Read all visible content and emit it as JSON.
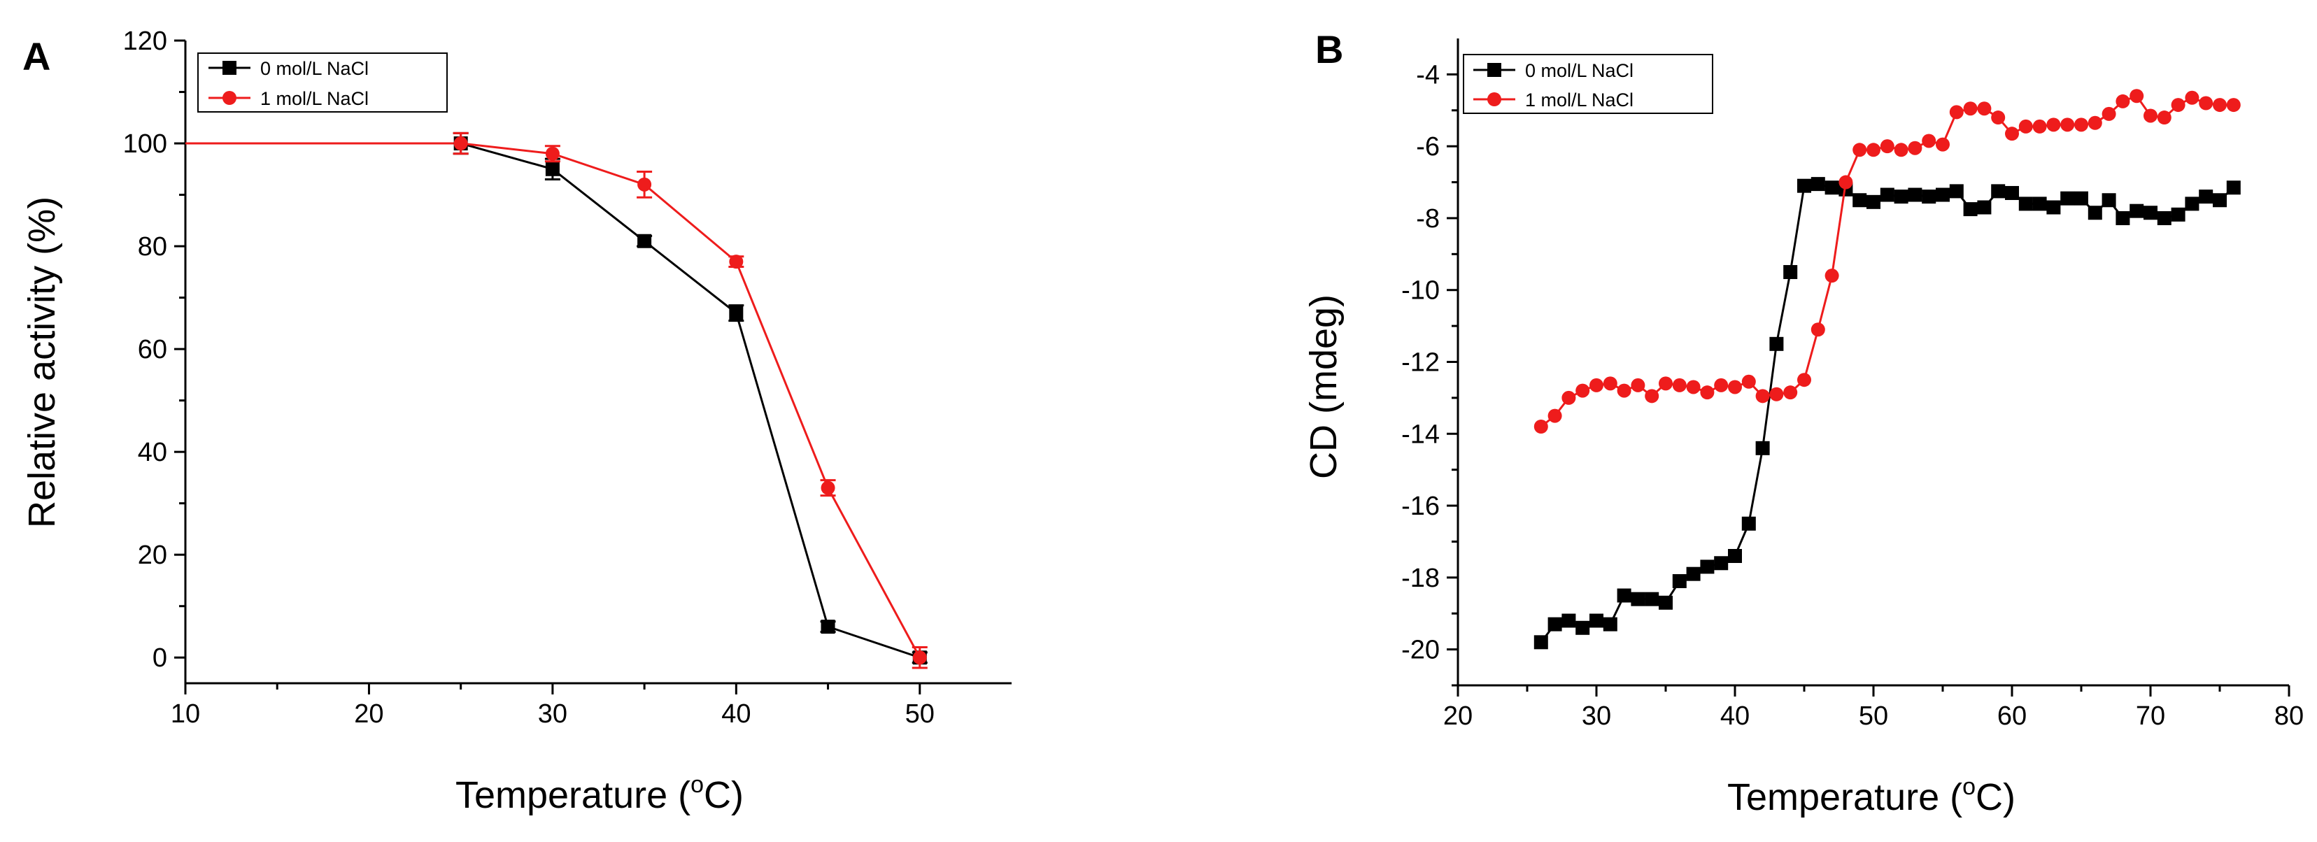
{
  "colors": {
    "series_black": "#000000",
    "series_red": "#ee1c1c"
  },
  "chart_data": [
    {
      "panel": "A",
      "type": "line",
      "title": "",
      "xlabel": "Temperature (°C)",
      "xlabel_main": "Temperature (",
      "xlabel_sup": "o",
      "xlabel_end": "C)",
      "ylabel": "Relative activity (%)",
      "xlim": [
        10,
        55
      ],
      "ylim": [
        -5,
        120
      ],
      "xticks": [
        10,
        20,
        30,
        40,
        50
      ],
      "yticks": [
        0,
        20,
        40,
        60,
        80,
        100,
        120
      ],
      "legend_position": "top-left",
      "grid": false,
      "series": [
        {
          "name": "0 mol/L NaCl",
          "color": "#000000",
          "marker": "square",
          "x": [
            25,
            30,
            35,
            40,
            45,
            50
          ],
          "y": [
            100,
            95,
            81,
            67,
            6,
            0
          ],
          "err": [
            2,
            2,
            1,
            1.5,
            1,
            1
          ]
        },
        {
          "name": "1 mol/L NaCl",
          "color": "#ee1c1c",
          "marker": "circle",
          "x": [
            25,
            30,
            35,
            40,
            45,
            50
          ],
          "y": [
            100,
            98,
            92,
            77,
            33,
            0
          ],
          "err": [
            2,
            1.5,
            2.5,
            1,
            1.5,
            2
          ]
        }
      ],
      "baseline": {
        "color": "#ee1c1c",
        "x": [
          10,
          25
        ],
        "y": [
          100,
          100
        ]
      }
    },
    {
      "panel": "B",
      "type": "line",
      "title": "",
      "xlabel": "Temperature (°C)",
      "xlabel_main": "Temperature (",
      "xlabel_sup": "o",
      "xlabel_end": "C)",
      "ylabel": "CD (mdeg)",
      "xlim": [
        20,
        80
      ],
      "ylim": [
        -21,
        -3
      ],
      "xticks": [
        20,
        30,
        40,
        50,
        60,
        70,
        80
      ],
      "yticks": [
        -20,
        -18,
        -16,
        -14,
        -12,
        -10,
        -8,
        -6,
        -4
      ],
      "legend_position": "top-left",
      "grid": false,
      "series": [
        {
          "name": "0 mol/L NaCl",
          "color": "#000000",
          "marker": "square",
          "x": [
            26,
            27,
            28,
            29,
            30,
            31,
            32,
            33,
            34,
            35,
            36,
            37,
            38,
            39,
            40,
            41,
            42,
            43,
            44,
            45,
            46,
            47,
            48,
            49,
            50,
            51,
            52,
            53,
            54,
            55,
            56,
            57,
            58,
            59,
            60,
            61,
            62,
            63,
            64,
            65,
            66,
            67,
            68,
            69,
            70,
            71,
            72,
            73,
            74,
            75,
            76
          ],
          "y": [
            -19.8,
            -19.3,
            -19.2,
            -19.4,
            -19.2,
            -19.3,
            -18.5,
            -18.6,
            -18.6,
            -18.7,
            -18.1,
            -17.9,
            -17.7,
            -17.6,
            -17.4,
            -16.5,
            -14.4,
            -11.5,
            -9.5,
            -7.1,
            -7.05,
            -7.15,
            -7.2,
            -7.5,
            -7.55,
            -7.35,
            -7.4,
            -7.35,
            -7.4,
            -7.35,
            -7.25,
            -7.75,
            -7.7,
            -7.25,
            -7.3,
            -7.6,
            -7.6,
            -7.7,
            -7.45,
            -7.45,
            -7.85,
            -7.5,
            -8.0,
            -7.8,
            -7.85,
            -8.0,
            -7.9,
            -7.6,
            -7.4,
            -7.5,
            -7.15
          ]
        },
        {
          "name": "1 mol/L NaCl",
          "color": "#ee1c1c",
          "marker": "circle",
          "x": [
            26,
            27,
            28,
            29,
            30,
            31,
            32,
            33,
            34,
            35,
            36,
            37,
            38,
            39,
            40,
            41,
            42,
            43,
            44,
            45,
            46,
            47,
            48,
            49,
            50,
            51,
            52,
            53,
            54,
            55,
            56,
            57,
            58,
            59,
            60,
            61,
            62,
            63,
            64,
            65,
            66,
            67,
            68,
            69,
            70,
            71,
            72,
            73,
            74,
            75,
            76
          ],
          "y": [
            -13.8,
            -13.5,
            -13.0,
            -12.8,
            -12.65,
            -12.6,
            -12.8,
            -12.65,
            -12.95,
            -12.6,
            -12.65,
            -12.7,
            -12.85,
            -12.65,
            -12.7,
            -12.55,
            -12.95,
            -12.9,
            -12.85,
            -12.5,
            -11.1,
            -9.6,
            -7.0,
            -6.1,
            -6.1,
            -6.0,
            -6.1,
            -6.05,
            -5.85,
            -5.95,
            -5.05,
            -4.95,
            -4.95,
            -5.2,
            -5.65,
            -5.45,
            -5.45,
            -5.4,
            -5.4,
            -5.4,
            -5.35,
            -5.1,
            -4.75,
            -4.6,
            -5.15,
            -5.2,
            -4.85,
            -4.65,
            -4.8,
            -4.85,
            -4.85
          ]
        }
      ]
    }
  ]
}
